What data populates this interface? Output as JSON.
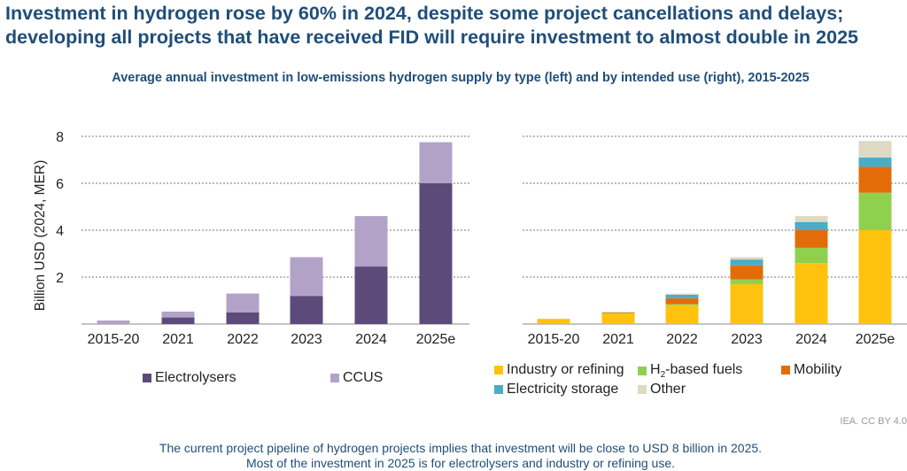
{
  "title_line1": "Investment in hydrogen rose by 60% in 2024, despite some project cancellations and delays;",
  "title_line2": "developing all projects that have received FID will require investment to almost double in 2025",
  "subtitle": "Average annual investment in low-emissions hydrogen supply by type (left) and by intended use (right), 2015-2025",
  "footer_line1": "The current project pipeline of hydrogen projects implies that investment will be close to USD 8 billion in 2025.",
  "footer_line2": "Most of the investment in 2025 is for electrolysers and industry or refining use.",
  "credit": "IEA. CC BY 4.0",
  "legend_h2_prefix": "H",
  "legend_h2_sub": "2",
  "legend_h2_suffix": "-based fuels",
  "chart_data": [
    {
      "type": "bar",
      "stacked": true,
      "ylabel": "Billion USD (2024, MER)",
      "ylim": [
        0,
        8
      ],
      "yticks": [
        2,
        4,
        6,
        8
      ],
      "grid": true,
      "legend_position": "bottom",
      "categories": [
        "2015-20",
        "2021",
        "2022",
        "2023",
        "2024",
        "2025e"
      ],
      "series": [
        {
          "name": "Electrolysers",
          "color": "#5c4a7a",
          "values": [
            0.0,
            0.28,
            0.5,
            1.2,
            2.45,
            6.0
          ]
        },
        {
          "name": "CCUS",
          "color": "#b3a2c8",
          "values": [
            0.15,
            0.25,
            0.8,
            1.65,
            2.15,
            1.75
          ]
        }
      ]
    },
    {
      "type": "bar",
      "stacked": true,
      "ylim": [
        0,
        8
      ],
      "yticks": [
        2,
        4,
        6,
        8
      ],
      "grid": true,
      "legend_position": "bottom",
      "categories": [
        "2015-20",
        "2021",
        "2022",
        "2023",
        "2024",
        "2025e"
      ],
      "series": [
        {
          "name": "Industry or refining",
          "color": "#ffc20e",
          "values": [
            0.22,
            0.45,
            0.8,
            1.7,
            2.6,
            4.0
          ]
        },
        {
          "name": "H2-based fuels",
          "color": "#8fd14f",
          "values": [
            0.0,
            0.02,
            0.05,
            0.2,
            0.65,
            1.6
          ]
        },
        {
          "name": "Mobility",
          "color": "#e36c09",
          "values": [
            0.0,
            0.03,
            0.25,
            0.6,
            0.75,
            1.1
          ]
        },
        {
          "name": "Electricity storage",
          "color": "#4bacc6",
          "values": [
            0.0,
            0.0,
            0.15,
            0.25,
            0.35,
            0.4
          ]
        },
        {
          "name": "Other",
          "color": "#ddd9c3",
          "values": [
            0.0,
            0.0,
            0.05,
            0.1,
            0.25,
            0.7
          ]
        }
      ]
    }
  ]
}
